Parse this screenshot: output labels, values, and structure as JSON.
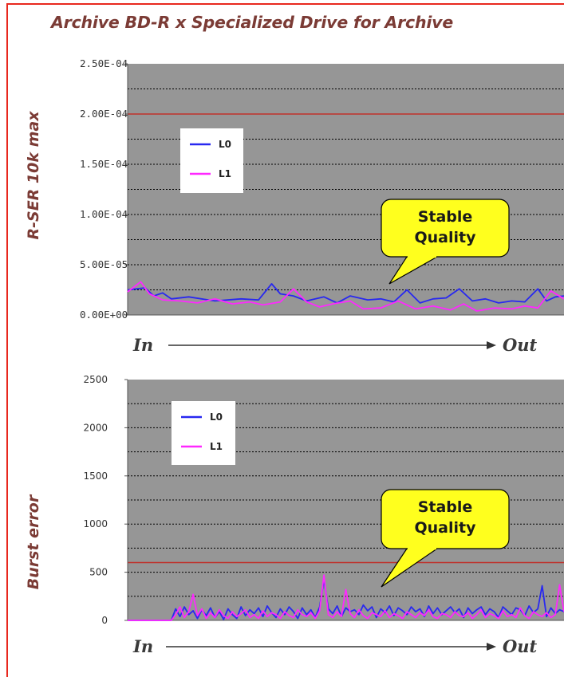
{
  "title": "Archive BD-R x Specialized Drive for Archive",
  "colors": {
    "frame": "#e8281e",
    "plot_background": "#969696",
    "threshold_line": "#c0302a",
    "L0": "#2828f0",
    "L1": "#ff28ff",
    "callout_fill": "#ffff1e",
    "label_text": "#7b3b35"
  },
  "chart_data": [
    {
      "type": "line",
      "ylabel": "R-SER 10k max",
      "x_start_label": "In",
      "x_end_label": "Out",
      "ylim": [
        0,
        0.00025
      ],
      "yticks": [
        "2.50E-04",
        "2.00E-04",
        "1.50E-04",
        "1.00E-04",
        "5.00E-05",
        "0.00E+00"
      ],
      "ytick_values": [
        0.00025,
        0.0002,
        0.00015,
        0.0001,
        5e-05,
        0
      ],
      "threshold": 0.0002,
      "grid": true,
      "legend": "top-left",
      "annotation": "Stable Quality",
      "annotation_lines": [
        "Stable",
        "Quality"
      ],
      "x_range": [
        0,
        100
      ],
      "series": [
        {
          "name": "L0",
          "color": "#2828f0",
          "x": [
            0,
            4,
            6,
            8,
            10,
            14,
            20,
            26,
            30,
            33,
            35,
            38,
            41,
            45,
            48,
            51,
            55,
            58,
            61,
            64,
            67,
            70,
            73,
            76,
            79,
            82,
            85,
            88,
            91,
            94,
            96,
            98,
            100
          ],
          "y": [
            2.5e-05,
            2.7e-05,
            1.9e-05,
            2.2e-05,
            1.6e-05,
            1.8e-05,
            1.4e-05,
            1.6e-05,
            1.5e-05,
            3.1e-05,
            2.1e-05,
            1.9e-05,
            1.4e-05,
            1.8e-05,
            1.2e-05,
            1.9e-05,
            1.5e-05,
            1.6e-05,
            1.3e-05,
            2.5e-05,
            1.2e-05,
            1.6e-05,
            1.7e-05,
            2.6e-05,
            1.4e-05,
            1.6e-05,
            1.2e-05,
            1.4e-05,
            1.3e-05,
            2.6e-05,
            1.4e-05,
            1.8e-05,
            1.9e-05
          ]
        },
        {
          "name": "L1",
          "color": "#ff28ff",
          "x": [
            0,
            3,
            5,
            8,
            12,
            16,
            20,
            24,
            28,
            31,
            35,
            38,
            41,
            44,
            47,
            51,
            54,
            58,
            62,
            66,
            70,
            74,
            77,
            80,
            84,
            88,
            91,
            94,
            97,
            100
          ],
          "y": [
            2.3e-05,
            3.3e-05,
            2.1e-05,
            1.5e-05,
            1.4e-05,
            1.2e-05,
            1.6e-05,
            1.1e-05,
            1.3e-05,
            1e-05,
            1.3e-05,
            2.6e-05,
            1.3e-05,
            8e-06,
            1.1e-05,
            1.4e-05,
            6e-06,
            7e-06,
            1.4e-05,
            6e-06,
            9e-06,
            5e-06,
            1.1e-05,
            4e-06,
            7e-06,
            6e-06,
            9e-06,
            7e-06,
            2.4e-05,
            1.6e-05
          ]
        }
      ]
    },
    {
      "type": "line",
      "ylabel": "Burst error",
      "x_start_label": "In",
      "x_end_label": "Out",
      "ylim": [
        0,
        2500
      ],
      "yticks": [
        "2500",
        "2000",
        "1500",
        "1000",
        "500",
        "0"
      ],
      "ytick_values": [
        2500,
        2000,
        1500,
        1000,
        500,
        0
      ],
      "threshold": 600,
      "grid": true,
      "legend": "top-left",
      "annotation": "Stable Quality",
      "annotation_lines": [
        "Stable",
        "Quality"
      ],
      "x_range": [
        0,
        100
      ],
      "series": [
        {
          "name": "L0",
          "color": "#2828f0",
          "x": [
            0,
            10,
            11,
            12,
            13,
            14,
            15,
            16,
            17,
            18,
            19,
            20,
            21,
            22,
            23,
            24,
            25,
            26,
            27,
            28,
            29,
            30,
            31,
            32,
            33,
            34,
            35,
            36,
            37,
            38,
            39,
            40,
            41,
            42,
            43,
            44,
            45,
            46,
            47,
            48,
            49,
            50,
            51,
            52,
            53,
            54,
            55,
            56,
            57,
            58,
            59,
            60,
            61,
            62,
            63,
            64,
            65,
            66,
            67,
            68,
            69,
            70,
            71,
            72,
            73,
            74,
            75,
            76,
            77,
            78,
            79,
            80,
            81,
            82,
            83,
            84,
            85,
            86,
            87,
            88,
            89,
            90,
            91,
            92,
            93,
            94,
            95,
            96,
            97,
            98,
            99,
            100
          ],
          "y": [
            0,
            0,
            120,
            40,
            140,
            60,
            100,
            20,
            110,
            50,
            130,
            30,
            90,
            10,
            120,
            60,
            20,
            140,
            50,
            110,
            70,
            130,
            40,
            150,
            80,
            30,
            120,
            60,
            140,
            90,
            20,
            130,
            60,
            110,
            30,
            140,
            420,
            120,
            70,
            150,
            40,
            130,
            90,
            110,
            60,
            160,
            100,
            140,
            30,
            120,
            80,
            150,
            50,
            130,
            100,
            60,
            140,
            90,
            120,
            40,
            150,
            70,
            130,
            60,
            100,
            140,
            80,
            120,
            30,
            130,
            70,
            110,
            140,
            60,
            120,
            90,
            30,
            140,
            100,
            60,
            130,
            110,
            50,
            150,
            80,
            120,
            360,
            40,
            130,
            70,
            110,
            90
          ]
        },
        {
          "name": "L1",
          "color": "#ff28ff",
          "x": [
            0,
            10,
            11,
            12,
            13,
            14,
            15,
            16,
            17,
            18,
            19,
            20,
            21,
            22,
            23,
            24,
            25,
            26,
            27,
            28,
            29,
            30,
            31,
            32,
            33,
            34,
            35,
            36,
            37,
            38,
            39,
            40,
            41,
            42,
            43,
            44,
            45,
            46,
            47,
            48,
            49,
            50,
            51,
            52,
            53,
            54,
            55,
            56,
            57,
            58,
            59,
            60,
            61,
            62,
            63,
            64,
            65,
            66,
            67,
            68,
            69,
            70,
            71,
            72,
            73,
            74,
            75,
            76,
            77,
            78,
            79,
            80,
            81,
            82,
            83,
            84,
            85,
            86,
            87,
            88,
            89,
            90,
            91,
            92,
            93,
            94,
            95,
            96,
            97,
            98,
            99,
            100
          ],
          "y": [
            0,
            0,
            60,
            140,
            30,
            90,
            270,
            50,
            120,
            20,
            80,
            30,
            110,
            50,
            20,
            90,
            40,
            70,
            110,
            30,
            60,
            20,
            100,
            40,
            80,
            60,
            20,
            90,
            50,
            30,
            110,
            60,
            40,
            80,
            20,
            100,
            470,
            60,
            30,
            90,
            40,
            320,
            70,
            30,
            110,
            50,
            20,
            80,
            60,
            40,
            100,
            30,
            70,
            50,
            20,
            90,
            60,
            30,
            80,
            50,
            110,
            40,
            20,
            70,
            60,
            30,
            90,
            50,
            40,
            80,
            20,
            60,
            110,
            30,
            70,
            50,
            20,
            100,
            40,
            60,
            30,
            130,
            50,
            20,
            90,
            60,
            40,
            80,
            30,
            60,
            370,
            90
          ]
        }
      ]
    }
  ]
}
